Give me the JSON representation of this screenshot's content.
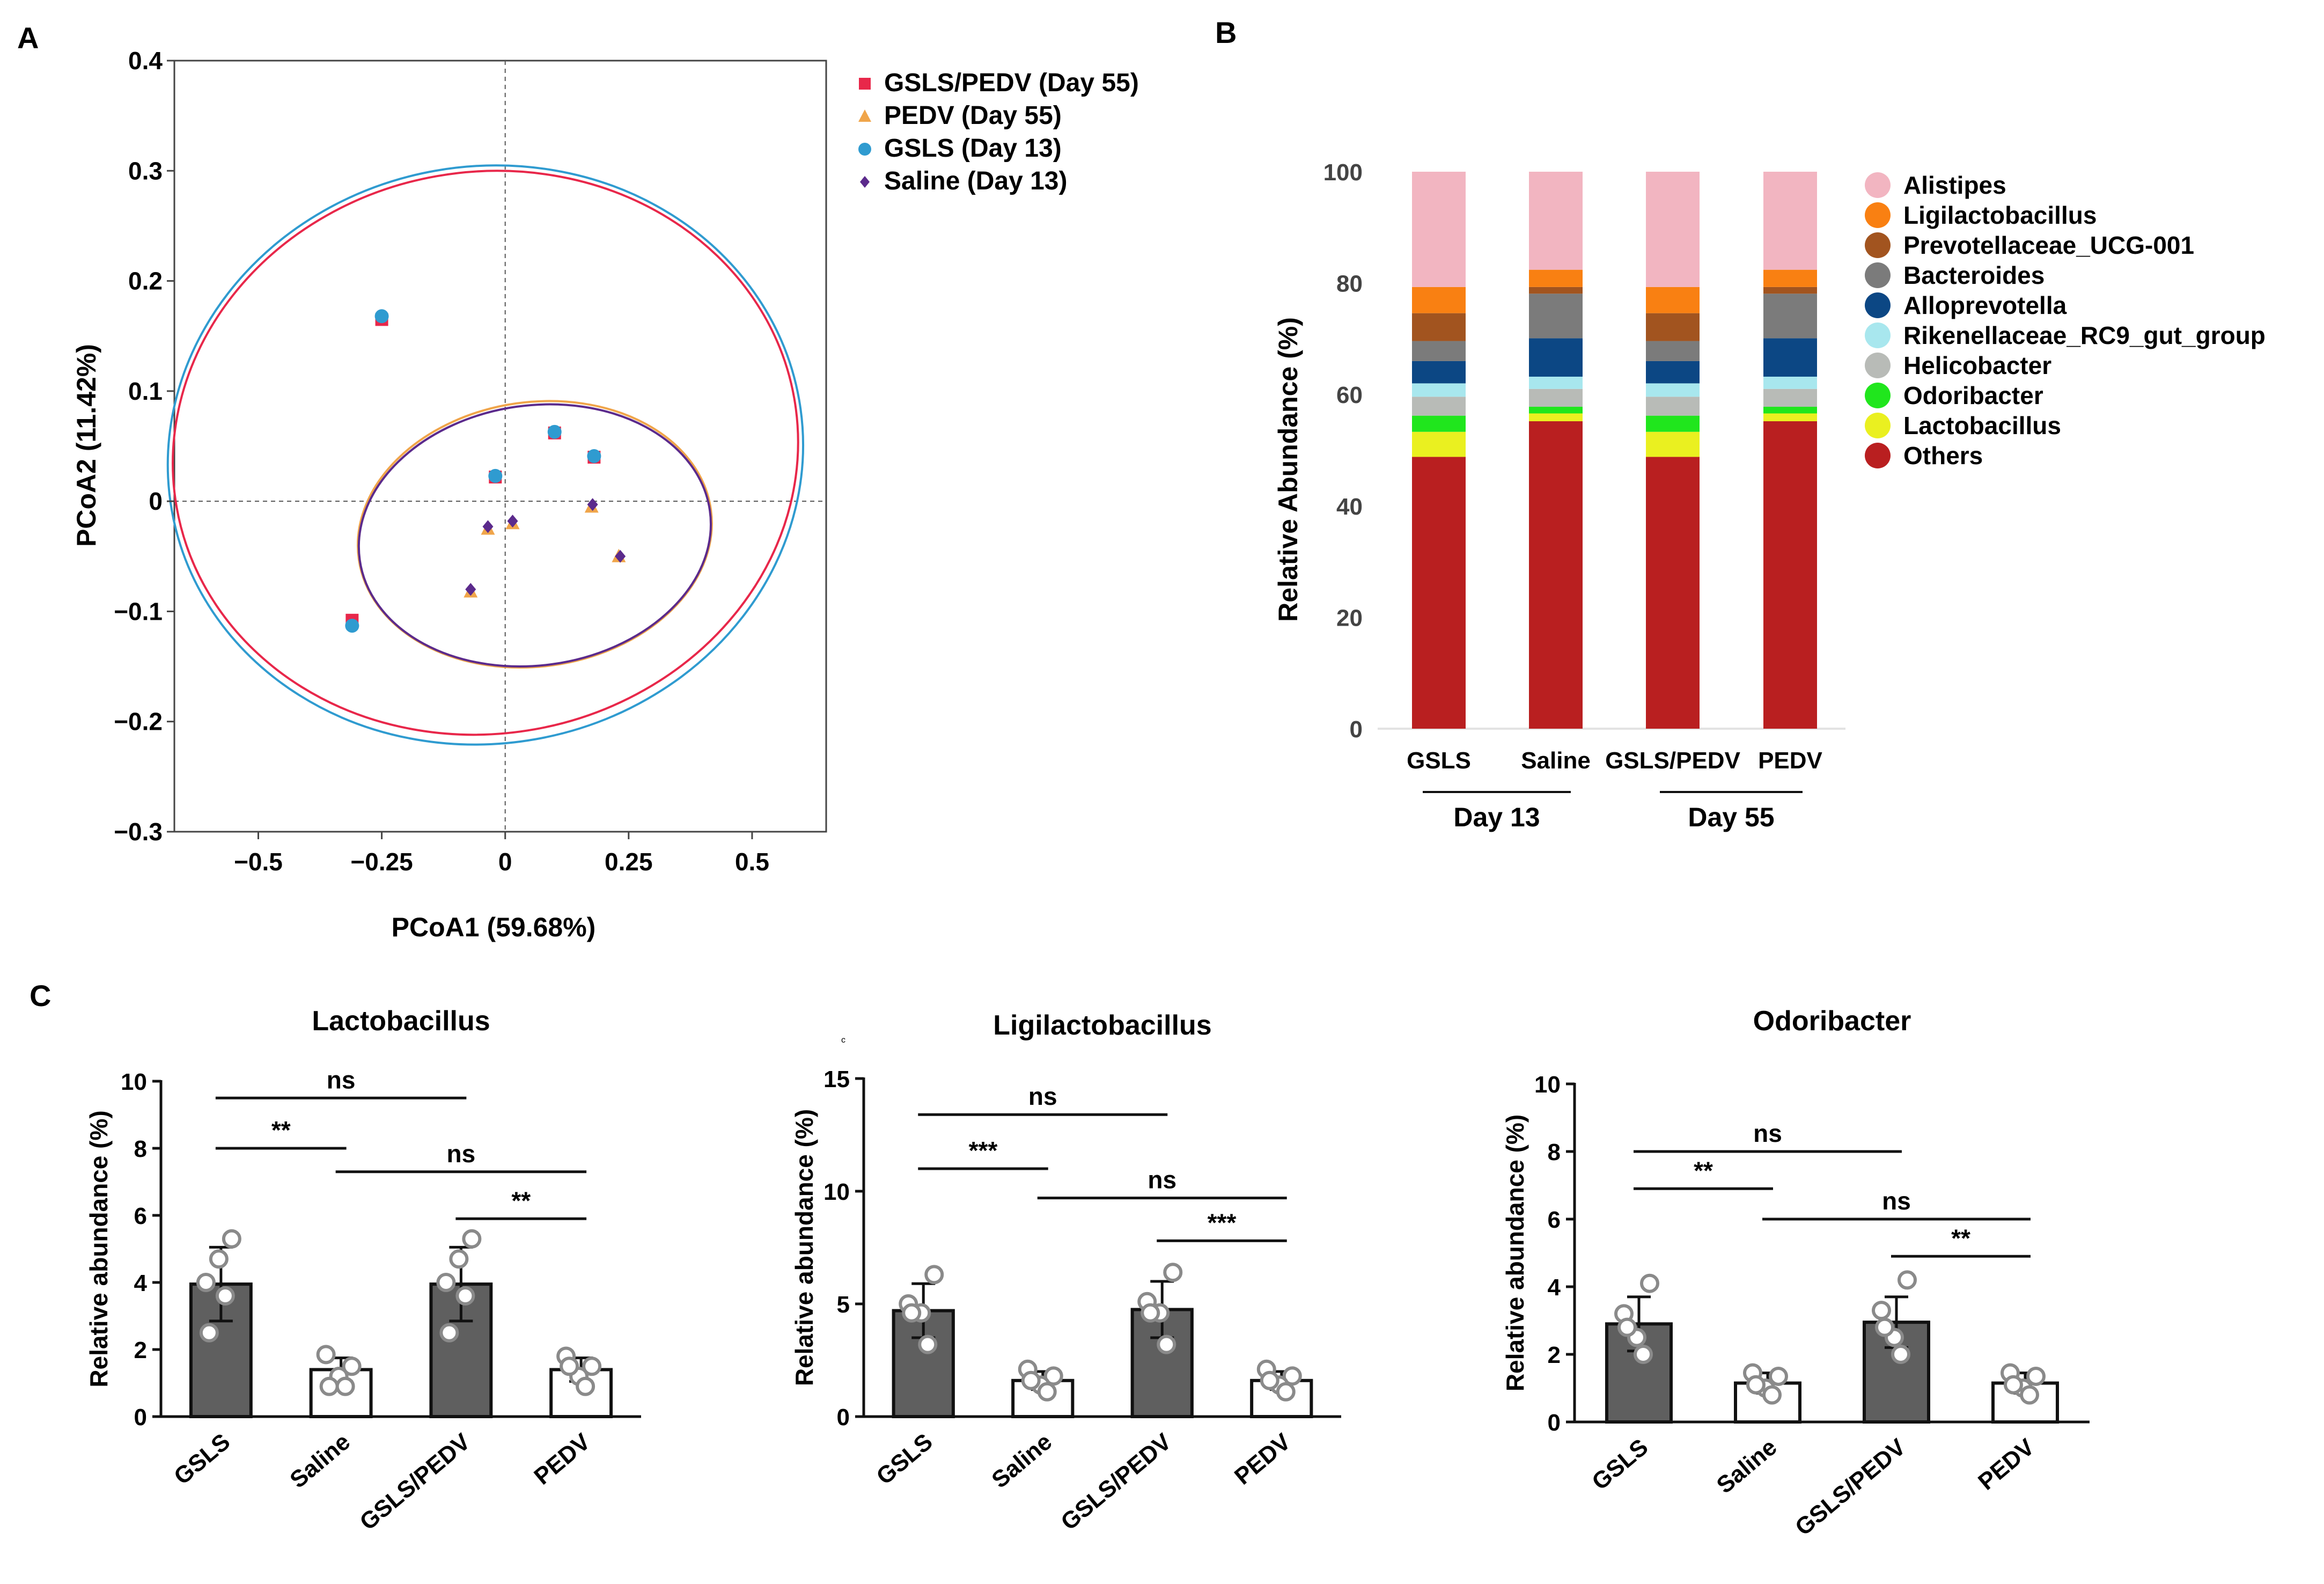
{
  "colors": {
    "gsls_pedv": "#e8274a",
    "pedv": "#f0a54a",
    "gsls": "#2f9bd0",
    "saline": "#5b2a8c",
    "gray_bar": "#5f5f5f",
    "taxa": [
      "#f2b5c1",
      "#f98012",
      "#a2541f",
      "#7b7b7b",
      "#0c4784",
      "#a8e7ee",
      "#b8bbb7",
      "#20e61d",
      "#eaf020",
      "#b91f20"
    ]
  },
  "chart_data": [
    {
      "panel": "A",
      "type": "scatter",
      "panel_label": "A",
      "xlabel": "PCoA1 (59.68%)",
      "ylabel": "PCoA2 (11.42%)",
      "xlim": [
        -0.67,
        0.65
      ],
      "ylim": [
        -0.3,
        0.4
      ],
      "xticks": [
        -0.5,
        -0.25,
        0,
        0.25,
        0.5
      ],
      "xtick_labels": [
        "−0.5",
        "−0.25",
        "0",
        "0.25",
        "0.5"
      ],
      "yticks": [
        0.4,
        0.3,
        0.2,
        0.1,
        0,
        -0.1,
        -0.2,
        -0.3
      ],
      "ytick_labels": [
        "0.4",
        "0.3",
        "0.2",
        "0.1",
        "0",
        "−0.1",
        "−0.2",
        "−0.3"
      ],
      "series": [
        {
          "name": "GSLS/PEDV (Day 55)",
          "marker": "square",
          "color": "#e8274a",
          "points": [
            [
              -0.25,
              0.165
            ],
            [
              0.1,
              0.062
            ],
            [
              0.18,
              0.04
            ],
            [
              -0.02,
              0.022
            ],
            [
              -0.31,
              -0.108
            ]
          ]
        },
        {
          "name": "PEDV (Day 55)",
          "marker": "triangle",
          "color": "#f0a54a",
          "points": [
            [
              -0.035,
              -0.025
            ],
            [
              0.015,
              -0.02
            ],
            [
              0.175,
              -0.005
            ],
            [
              0.23,
              -0.05
            ],
            [
              -0.07,
              -0.082
            ]
          ]
        },
        {
          "name": "GSLS (Day 13)",
          "marker": "circle",
          "color": "#2f9bd0",
          "points": [
            [
              -0.25,
              0.168
            ],
            [
              0.1,
              0.063
            ],
            [
              0.18,
              0.041
            ],
            [
              -0.02,
              0.023
            ],
            [
              -0.31,
              -0.113
            ]
          ]
        },
        {
          "name": "Saline (Day 13)",
          "marker": "diamond",
          "color": "#5b2a8c",
          "points": [
            [
              -0.035,
              -0.023
            ],
            [
              0.015,
              -0.018
            ],
            [
              0.177,
              -0.003
            ],
            [
              0.233,
              -0.05
            ],
            [
              -0.07,
              -0.08
            ]
          ]
        }
      ],
      "ellipses": [
        {
          "group": "GSLS/PEDV (Day 55)",
          "color": "#e8274a",
          "cx": -0.04,
          "cy": 0.044,
          "rx": 0.635,
          "ry": 0.255,
          "angle_deg": 10
        },
        {
          "group": "GSLS (Day 13)",
          "color": "#2f9bd0",
          "cx": -0.04,
          "cy": 0.042,
          "rx": 0.645,
          "ry": 0.262,
          "angle_deg": 10
        },
        {
          "group": "PEDV (Day 55)",
          "color": "#f0a54a",
          "cx": 0.06,
          "cy": -0.03,
          "rx": 0.36,
          "ry": 0.12,
          "angle_deg": 8
        },
        {
          "group": "Saline (Day 13)",
          "color": "#5b2a8c",
          "cx": 0.06,
          "cy": -0.031,
          "rx": 0.358,
          "ry": 0.118,
          "angle_deg": 8
        }
      ],
      "legend": [
        "GSLS/PEDV (Day 55)",
        "PEDV (Day 55)",
        "GSLS (Day 13)",
        "Saline (Day 13)"
      ]
    },
    {
      "panel": "B",
      "type": "bar",
      "stacked": true,
      "panel_label": "B",
      "ylabel": "Relative Abundance (%)",
      "ylim": [
        0,
        100
      ],
      "yticks": [
        0,
        20,
        40,
        60,
        80,
        100
      ],
      "categories": [
        "GSLS",
        "Saline",
        "GSLS/PEDV",
        "PEDV"
      ],
      "groups": [
        {
          "label": "Day 13",
          "members": [
            "GSLS",
            "Saline"
          ]
        },
        {
          "label": "Day 55",
          "members": [
            "GSLS/PEDV",
            "PEDV"
          ]
        }
      ],
      "legend": [
        "Alistipes",
        "Ligilactobacillus",
        "Prevotellaceae_UCG-001",
        "Bacteroides",
        "Alloprevotella",
        "Rikenellaceae_RC9_gut_group",
        "Helicobacter",
        "Odoribacter",
        "Lactobacillus",
        "Others"
      ],
      "series": [
        {
          "name": "Others",
          "values": [
            48.8,
            55.2,
            48.8,
            55.2
          ]
        },
        {
          "name": "Lactobacillus",
          "values": [
            4.5,
            1.4,
            4.5,
            1.4
          ]
        },
        {
          "name": "Odoribacter",
          "values": [
            2.9,
            1.2,
            2.9,
            1.2
          ]
        },
        {
          "name": "Helicobacter",
          "values": [
            3.4,
            3.2,
            3.4,
            3.2
          ]
        },
        {
          "name": "Rikenellaceae_RC9_gut_group",
          "values": [
            2.4,
            2.2,
            2.4,
            2.2
          ]
        },
        {
          "name": "Alloprevotella",
          "values": [
            4.0,
            6.9,
            4.0,
            6.9
          ]
        },
        {
          "name": "Bacteroides",
          "values": [
            3.6,
            8.0,
            3.6,
            8.0
          ]
        },
        {
          "name": "Prevotellaceae_UCG-001",
          "values": [
            5.0,
            1.2,
            5.0,
            1.2
          ]
        },
        {
          "name": "Ligilactobacillus",
          "values": [
            4.7,
            3.1,
            4.7,
            3.1
          ]
        },
        {
          "name": "Alistipes",
          "values": [
            20.7,
            17.6,
            20.7,
            17.6
          ]
        }
      ]
    },
    {
      "panel": "C1",
      "type": "bar",
      "panel_label": "C",
      "title": "Lactobacillus",
      "ylabel": "Relative abundance (%)",
      "ylim": [
        0,
        10
      ],
      "yticks": [
        0,
        2,
        4,
        6,
        8,
        10
      ],
      "categories": [
        "GSLS",
        "Saline",
        "GSLS/PEDV",
        "PEDV"
      ],
      "fills": [
        "dark",
        "white",
        "dark",
        "white"
      ],
      "values": [
        3.95,
        1.4,
        3.95,
        1.4
      ],
      "errors": [
        1.1,
        0.35,
        1.1,
        0.35
      ],
      "points": [
        [
          4.0,
          5.3,
          4.7,
          3.6,
          2.5
        ],
        [
          1.85,
          1.5,
          1.2,
          0.9,
          0.9
        ],
        [
          4.0,
          5.3,
          4.7,
          3.6,
          2.5
        ],
        [
          1.8,
          1.5,
          1.2,
          0.9,
          1.5
        ]
      ],
      "significance": [
        {
          "label": "ns",
          "from": 0,
          "to": 2,
          "y": 9.5
        },
        {
          "label": "**",
          "from": 0,
          "to": 1,
          "y": 8.0
        },
        {
          "label": "ns",
          "from": 1,
          "to": 3,
          "y": 7.3
        },
        {
          "label": "**",
          "from": 2,
          "to": 3,
          "y": 5.9
        }
      ]
    },
    {
      "panel": "C2",
      "type": "bar",
      "title": "Ligilactobacillus",
      "ylabel": "Relative abundance (%)",
      "ylim": [
        0,
        15
      ],
      "yticks": [
        0,
        5,
        10,
        15
      ],
      "categories": [
        "GSLS",
        "Saline",
        "GSLS/PEDV",
        "PEDV"
      ],
      "fills": [
        "dark",
        "white",
        "dark",
        "white"
      ],
      "values": [
        4.7,
        1.6,
        4.75,
        1.6
      ],
      "errors": [
        1.2,
        0.4,
        1.25,
        0.4
      ],
      "points": [
        [
          5.0,
          6.3,
          4.6,
          3.2,
          4.6
        ],
        [
          2.1,
          1.8,
          1.4,
          1.1,
          1.6
        ],
        [
          5.1,
          6.4,
          4.6,
          3.2,
          4.6
        ],
        [
          2.1,
          1.8,
          1.4,
          1.1,
          1.6
        ]
      ],
      "significance": [
        {
          "label": "ns",
          "from": 0,
          "to": 2,
          "y": 13.4
        },
        {
          "label": "***",
          "from": 0,
          "to": 1,
          "y": 11.0
        },
        {
          "label": "ns",
          "from": 1,
          "to": 3,
          "y": 9.7
        },
        {
          "label": "***",
          "from": 2,
          "to": 3,
          "y": 7.8
        }
      ]
    },
    {
      "panel": "C3",
      "type": "bar",
      "title": "Odoribacter",
      "ylabel": "Relative abundance (%)",
      "ylim": [
        0,
        10
      ],
      "yticks": [
        0,
        2,
        4,
        6,
        8,
        10
      ],
      "categories": [
        "GSLS",
        "Saline",
        "GSLS/PEDV",
        "PEDV"
      ],
      "fills": [
        "dark",
        "white",
        "dark",
        "white"
      ],
      "values": [
        2.9,
        1.15,
        2.95,
        1.15
      ],
      "errors": [
        0.8,
        0.3,
        0.75,
        0.3
      ],
      "points": [
        [
          3.2,
          4.1,
          2.5,
          2.0,
          2.8
        ],
        [
          1.45,
          1.35,
          1.0,
          0.8,
          1.1
        ],
        [
          3.3,
          4.2,
          2.5,
          2.0,
          2.8
        ],
        [
          1.45,
          1.35,
          1.0,
          0.8,
          1.1
        ]
      ],
      "significance": [
        {
          "label": "ns",
          "from": 0,
          "to": 2,
          "y": 8.0
        },
        {
          "label": "**",
          "from": 0,
          "to": 1,
          "y": 6.9
        },
        {
          "label": "ns",
          "from": 1,
          "to": 3,
          "y": 6.0
        },
        {
          "label": "**",
          "from": 2,
          "to": 3,
          "y": 4.9
        }
      ]
    }
  ],
  "stray_mark": "c"
}
